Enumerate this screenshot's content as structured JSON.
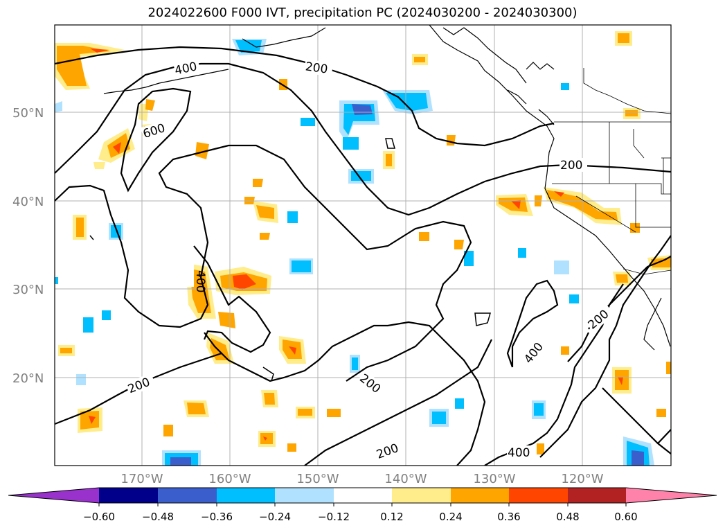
{
  "title": "2024022600 F000 IVT, precipitation PC (2024030200 - 2024030300)",
  "map": {
    "lat_labels": [
      "50°N",
      "40°N",
      "30°N",
      "20°N"
    ],
    "lon_labels": [
      "170°W",
      "160°W",
      "150°W",
      "140°W",
      "130°W",
      "120°W"
    ],
    "contour_labels": [
      "400",
      "200",
      "600",
      "200",
      "400",
      "200",
      "200",
      "400",
      "200",
      "400"
    ]
  },
  "colorbar": {
    "ticks": [
      "−0.60",
      "−0.48",
      "−0.36",
      "−0.24",
      "−0.12",
      "0.12",
      "0.24",
      "0.36",
      "0.48",
      "0.60"
    ],
    "colors": {
      "under": "#9932cc",
      "bins": [
        "#00008b",
        "#3a5fcd",
        "#00bfff",
        "#b0e2ff",
        "#ffffff",
        "#ffec8b",
        "#ffa500",
        "#ff4500",
        "#b22222"
      ],
      "over": "#ff82ab"
    }
  },
  "colors": {
    "positive_light": "#ffec8b",
    "positive_mid": "#ffa500",
    "positive_high": "#ff4500",
    "negative_light": "#b0e2ff",
    "negative_mid": "#00bfff",
    "negative_high": "#3a5fcd",
    "grid": "#b0b0b0"
  }
}
